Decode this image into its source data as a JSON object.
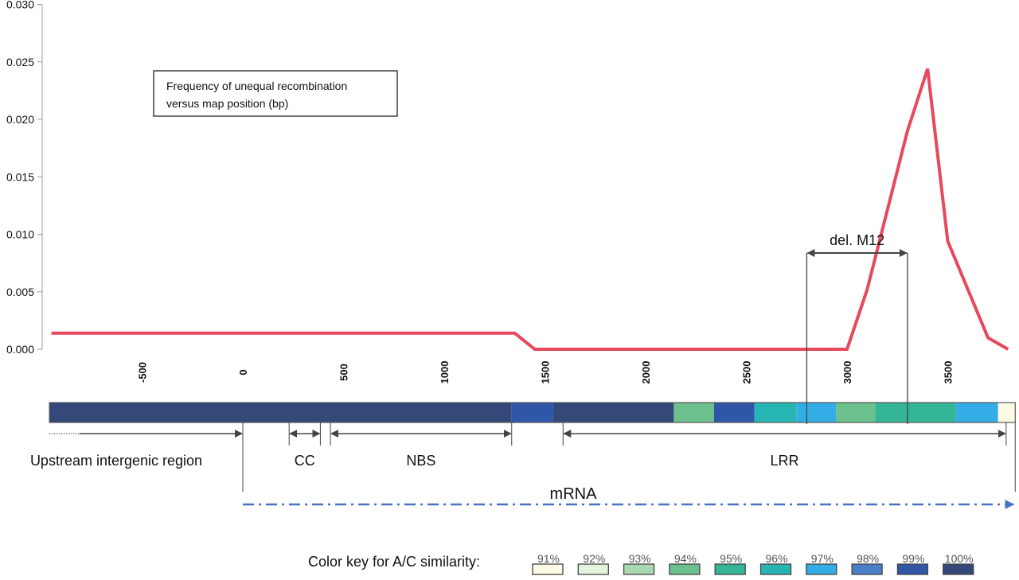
{
  "chart_data": {
    "type": "line",
    "title": "",
    "legend_text": [
      "Frequency of unequal recombination",
      "versus map position (bp)"
    ],
    "xlabel": "",
    "ylabel": "",
    "ylim": [
      0,
      0.03
    ],
    "yticks": [
      "0.000",
      "0.005",
      "0.010",
      "0.015",
      "0.020",
      "0.025",
      "0.030"
    ],
    "xticks": [
      "-500",
      "0",
      "500",
      "1000",
      "1500",
      "2000",
      "2500",
      "3000",
      "3500"
    ],
    "grid": false,
    "line_color": "#e8485c",
    "series": [
      {
        "x": [
          -950,
          1350,
          1450,
          3000,
          3100,
          3300,
          3400,
          3500,
          3700,
          3800
        ],
        "y": [
          0.0014,
          0.0014,
          0.0,
          0.0,
          0.0052,
          0.019,
          0.0244,
          0.0094,
          0.001,
          0.0
        ]
      }
    ],
    "annotation": {
      "label": "del. M12",
      "x_start": 2800,
      "x_end": 3300
    }
  },
  "similarity_bar": {
    "segments": [
      {
        "start": -960,
        "end": 1335,
        "similarity": "100%"
      },
      {
        "start": 1335,
        "end": 1540,
        "similarity": "99%"
      },
      {
        "start": 1540,
        "end": 2140,
        "similarity": "100%"
      },
      {
        "start": 2140,
        "end": 2340,
        "similarity": "94%"
      },
      {
        "start": 2340,
        "end": 2540,
        "similarity": "99%"
      },
      {
        "start": 2540,
        "end": 2750,
        "similarity": "96%"
      },
      {
        "start": 2750,
        "end": 2945,
        "similarity": "97%"
      },
      {
        "start": 2945,
        "end": 3140,
        "similarity": "94%"
      },
      {
        "start": 3140,
        "end": 3540,
        "similarity": "95%"
      },
      {
        "start": 3540,
        "end": 3750,
        "similarity": "97%"
      },
      {
        "start": 3750,
        "end": 3835,
        "similarity": "91%"
      }
    ]
  },
  "regions": [
    {
      "label": "Upstream intergenic region",
      "start": -960,
      "end": 0
    },
    {
      "label": "CC",
      "start": 230,
      "end": 385
    },
    {
      "label": "NBS",
      "start": 435,
      "end": 1335
    },
    {
      "label": "LRR",
      "start": 1590,
      "end": 3790
    }
  ],
  "mrna": {
    "label": "mRNA",
    "start": 0,
    "end": 3835,
    "color": "#4a72c4"
  },
  "color_key": {
    "title": "Color key for A/C similarity:",
    "items": [
      {
        "label": "91%",
        "color": "#fdfbe6"
      },
      {
        "label": "92%",
        "color": "#e4f3dc"
      },
      {
        "label": "93%",
        "color": "#a9d9b1"
      },
      {
        "label": "94%",
        "color": "#6cc08e"
      },
      {
        "label": "95%",
        "color": "#35b597"
      },
      {
        "label": "96%",
        "color": "#27b5b3"
      },
      {
        "label": "97%",
        "color": "#33ade6"
      },
      {
        "label": "98%",
        "color": "#4a7ec9"
      },
      {
        "label": "99%",
        "color": "#2f56a8"
      },
      {
        "label": "100%",
        "color": "#34497a"
      }
    ]
  }
}
